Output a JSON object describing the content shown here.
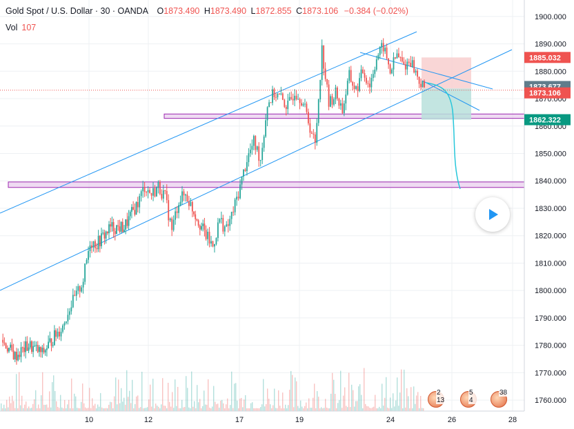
{
  "header": {
    "symbol": "Gold Spot / U.S. Dollar · 30 · OANDA",
    "o_label": "O",
    "o_value": "1873.490",
    "h_label": "H",
    "h_value": "1873.490",
    "l_label": "L",
    "l_value": "1872.855",
    "c_label": "C",
    "c_value": "1873.106",
    "change": "−0.384 (−0.02%)"
  },
  "volume": {
    "label": "Vol",
    "value": "107"
  },
  "events": [
    "2 13",
    "5 4",
    "38"
  ],
  "colors": {
    "up": "#26a69a",
    "down": "#ef5350",
    "channel": "#2196f3",
    "zone": "#9c27b0",
    "zone_fill": "#e1bee7",
    "stop": "#f8cfcf",
    "target": "#b9e0dc"
  },
  "chart_data": {
    "type": "candlestick",
    "ylim": [
      1756,
      1906
    ],
    "y_ticks": [
      1760,
      1770,
      1780,
      1790,
      1800,
      1810,
      1820,
      1830,
      1840,
      1850,
      1860,
      1870,
      1880,
      1890,
      1900
    ],
    "y_tick_labels": [
      "1760.000",
      "1770.000",
      "1780.000",
      "1790.000",
      "1800.000",
      "1810.000",
      "1820.000",
      "1830.000",
      "1840.000",
      "1850.000",
      "1860.000",
      "1870.000",
      "1880.000",
      "1890.000",
      "1900.000"
    ],
    "x_ticks": [
      "10",
      "12",
      "17",
      "19",
      "24",
      "26",
      "28"
    ],
    "price_series": [
      [
        0,
        1782
      ],
      [
        2,
        1776
      ],
      [
        4,
        1780
      ],
      [
        6,
        1777
      ],
      [
        8,
        1784
      ],
      [
        9,
        1787
      ],
      [
        10,
        1794
      ],
      [
        11,
        1798
      ],
      [
        12,
        1804
      ],
      [
        13,
        1818
      ],
      [
        14,
        1817
      ],
      [
        16,
        1823
      ],
      [
        18,
        1823
      ],
      [
        20,
        1832
      ],
      [
        21,
        1838
      ],
      [
        22,
        1835
      ],
      [
        23,
        1838
      ],
      [
        24,
        1834
      ],
      [
        25,
        1822
      ],
      [
        26,
        1833
      ],
      [
        27,
        1835
      ],
      [
        28,
        1830
      ],
      [
        30,
        1820
      ],
      [
        31,
        1816
      ],
      [
        32,
        1826
      ],
      [
        33,
        1822
      ],
      [
        34,
        1829
      ],
      [
        35,
        1838
      ],
      [
        36,
        1848
      ],
      [
        37,
        1854
      ],
      [
        38,
        1848
      ],
      [
        39,
        1868
      ],
      [
        40,
        1872
      ],
      [
        41,
        1870
      ],
      [
        42,
        1867
      ],
      [
        43,
        1873
      ],
      [
        44,
        1870
      ],
      [
        45,
        1862
      ],
      [
        46,
        1853
      ],
      [
        47,
        1888
      ],
      [
        48,
        1868
      ],
      [
        49,
        1872
      ],
      [
        50,
        1866
      ],
      [
        51,
        1878
      ],
      [
        52,
        1873
      ],
      [
        53,
        1880
      ],
      [
        54,
        1875
      ],
      [
        55,
        1885
      ],
      [
        56,
        1889
      ],
      [
        57,
        1880
      ],
      [
        58,
        1886
      ],
      [
        59,
        1882
      ],
      [
        60,
        1884
      ],
      [
        61,
        1878
      ],
      [
        62,
        1873
      ]
    ],
    "levels": [
      {
        "label": "1885.032",
        "value": 1885.032,
        "role": "stop"
      },
      {
        "label": "1873.677",
        "value": 1873.677,
        "role": "marker"
      },
      {
        "label": "1873.106",
        "value": 1873.106,
        "role": "last"
      },
      {
        "label": "1862.322",
        "value": 1862.322,
        "role": "target"
      }
    ],
    "zones": [
      {
        "from": 1862.8,
        "to": 1864.4
      },
      {
        "from": 1837.6,
        "to": 1839.6
      }
    ],
    "grid": true
  }
}
